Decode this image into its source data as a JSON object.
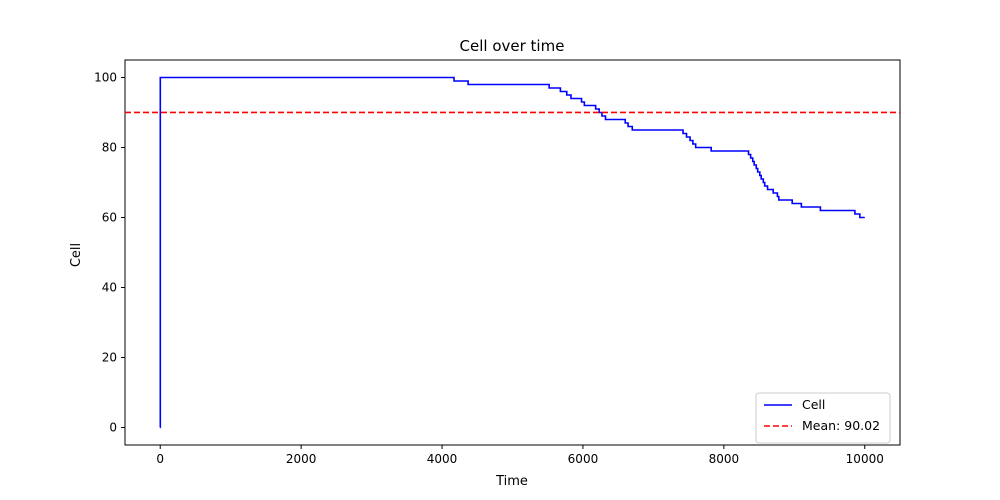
{
  "chart_data": {
    "type": "line",
    "title": "Cell over time",
    "xlabel": "Time",
    "ylabel": "Cell",
    "xlim": [
      -500,
      10500
    ],
    "ylim": [
      -5,
      105
    ],
    "xticks": [
      0,
      2000,
      4000,
      6000,
      8000,
      10000
    ],
    "yticks": [
      0,
      20,
      40,
      60,
      80,
      100
    ],
    "grid": false,
    "legend_position": "bottom-right",
    "series": [
      {
        "name": "Cell",
        "color": "#0000ff",
        "style": "solid",
        "step": true,
        "points": [
          [
            0,
            0
          ],
          [
            1,
            100
          ],
          [
            4170,
            99
          ],
          [
            4370,
            98
          ],
          [
            5520,
            97
          ],
          [
            5680,
            96
          ],
          [
            5770,
            95
          ],
          [
            5830,
            94
          ],
          [
            5980,
            93
          ],
          [
            6020,
            92
          ],
          [
            6180,
            91
          ],
          [
            6230,
            90
          ],
          [
            6270,
            89
          ],
          [
            6320,
            88
          ],
          [
            6600,
            87
          ],
          [
            6640,
            86
          ],
          [
            6700,
            85
          ],
          [
            7420,
            84
          ],
          [
            7470,
            83
          ],
          [
            7520,
            82
          ],
          [
            7560,
            81
          ],
          [
            7600,
            80
          ],
          [
            7820,
            79
          ],
          [
            8350,
            78
          ],
          [
            8380,
            77
          ],
          [
            8410,
            76
          ],
          [
            8430,
            75
          ],
          [
            8460,
            74
          ],
          [
            8480,
            73
          ],
          [
            8510,
            72
          ],
          [
            8530,
            71
          ],
          [
            8560,
            70
          ],
          [
            8580,
            69
          ],
          [
            8620,
            68
          ],
          [
            8700,
            67
          ],
          [
            8760,
            66
          ],
          [
            8780,
            65
          ],
          [
            8970,
            64
          ],
          [
            9100,
            63
          ],
          [
            9370,
            62
          ],
          [
            9860,
            61
          ],
          [
            9930,
            60
          ],
          [
            10000,
            60
          ]
        ]
      },
      {
        "name": "Mean: 90.02",
        "color": "#ff0000",
        "style": "dashed",
        "constant": 90.02
      }
    ]
  }
}
